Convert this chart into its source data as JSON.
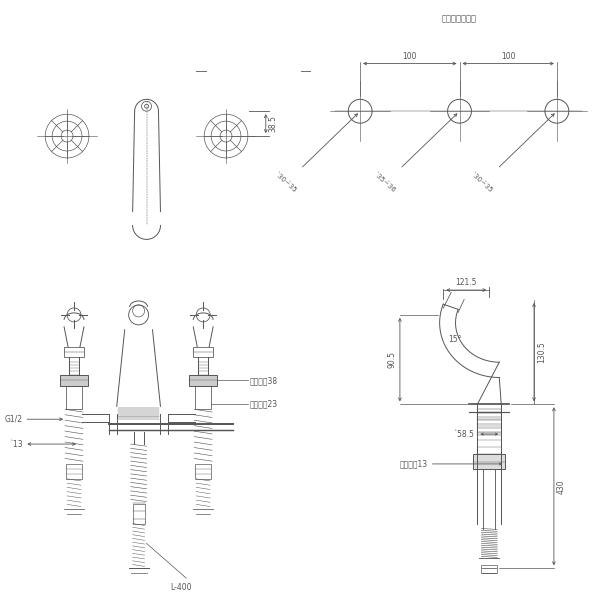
{
  "bg_color": "#ffffff",
  "lc": "#555555",
  "lc_thin": "#777777",
  "fs_dim": 5.5,
  "fs_title": 6,
  "tl_dim_38_5": "38.5",
  "tr_title": "水栓金具取付穴",
  "tr_100": "100",
  "tr_phi30_35": "̀30~̀35",
  "tr_phi35_36": "̀35~̀36",
  "bl_G12": "G1/2",
  "bl_phi13": "̀13",
  "bl_hex38": "六角対邂38",
  "bl_hex23": "六角対邂23",
  "bl_L400": "L-400",
  "br_121_5": "121.5",
  "br_90_5": "90.5",
  "br_15deg": "15°",
  "br_130_5": "130.5",
  "br_phi58_5": "̀58.5",
  "br_hex13": "六角対邂13",
  "br_430": "430"
}
